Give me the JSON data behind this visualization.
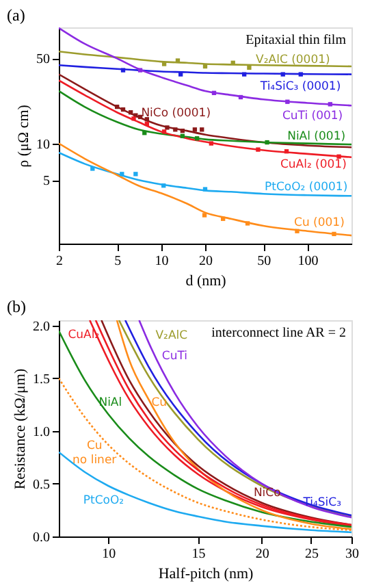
{
  "chart_data": [
    {
      "type": "line",
      "title": "(a)",
      "xlabel": "d (nm)",
      "ylabel": "ρ (μΩ cm)",
      "log": "xy",
      "xlim": [
        2,
        200
      ],
      "xticks": [
        2,
        5,
        10,
        20,
        50,
        100
      ],
      "ylim": [
        1.5,
        90
      ],
      "yticks": [
        5,
        10,
        50
      ],
      "grid": false,
      "annotations": [
        "Epitaxial thin film"
      ],
      "series": [
        {
          "name": "V₂AlC (0001)",
          "color": "#9c9c2c",
          "x": [
            2,
            3,
            5,
            7,
            10,
            15,
            20,
            30,
            50,
            100,
            200
          ],
          "values": [
            57,
            54,
            51,
            49,
            47,
            46,
            45,
            44.5,
            44,
            43.5,
            43
          ]
        },
        {
          "name": "Ti₄SiC₃ (0001)",
          "color": "#2020e0",
          "x": [
            2,
            3,
            5,
            7,
            10,
            15,
            20,
            30,
            50,
            100,
            200
          ],
          "values": [
            44,
            42.5,
            41,
            40,
            39,
            38.5,
            38,
            37.8,
            37.5,
            37.2,
            37
          ]
        },
        {
          "name": "CuTi (001)",
          "color": "#8b2be2",
          "x": [
            2,
            3,
            5,
            7,
            10,
            15,
            20,
            30,
            50,
            100,
            200
          ],
          "values": [
            89,
            66,
            50,
            41,
            35,
            30,
            27,
            25,
            23,
            21.5,
            20.5
          ]
        },
        {
          "name": "NiCo (0001)",
          "color": "#8b1a1a",
          "x": [
            2,
            3,
            5,
            7,
            10,
            15,
            20,
            30,
            50,
            100,
            200
          ],
          "values": [
            37,
            28,
            20,
            16.5,
            14,
            12.7,
            11.8,
            11,
            10.2,
            9.6,
            9.3
          ]
        },
        {
          "name": "NiAl (001)",
          "color": "#1a8c1a",
          "x": [
            2,
            3,
            5,
            7,
            10,
            15,
            20,
            30,
            50,
            100,
            200
          ],
          "values": [
            27,
            20,
            15,
            13,
            12,
            11.3,
            10.8,
            10.5,
            10.2,
            10,
            9.8
          ]
        },
        {
          "name": "CuAl₂ (001)",
          "color": "#ee1c25",
          "x": [
            2,
            3,
            5,
            7,
            10,
            15,
            20,
            30,
            50,
            100,
            200
          ],
          "values": [
            33,
            25,
            18,
            15,
            12.5,
            11,
            10.3,
            9.5,
            8.8,
            8.2,
            7.7
          ]
        },
        {
          "name": "PtCoO₂ (0001)",
          "color": "#1eaaf0",
          "x": [
            2,
            3,
            5,
            7,
            10,
            15,
            20,
            30,
            50,
            100,
            200
          ],
          "values": [
            8.4,
            6.8,
            5.6,
            5,
            4.6,
            4.3,
            4.1,
            4,
            3.85,
            3.75,
            3.7
          ]
        },
        {
          "name": "Cu (001)",
          "color": "#ff8c1a",
          "x": [
            2,
            3,
            5,
            7,
            10,
            15,
            20,
            30,
            50,
            100,
            200
          ],
          "values": [
            10,
            7.5,
            5.5,
            4.5,
            3.9,
            3.2,
            2.7,
            2.4,
            2.1,
            1.9,
            1.75
          ]
        },
        {
          "type": "scatter",
          "marker": "square",
          "color": "#9c9c2c",
          "x": [
            10.5,
            13,
            20,
            31,
            40
          ],
          "values": [
            45,
            48,
            43,
            46,
            42
          ]
        },
        {
          "type": "scatter",
          "marker": "square",
          "color": "#2020e0",
          "x": [
            5.5,
            7.2,
            13.6,
            37,
            68,
            90
          ],
          "values": [
            40,
            null,
            37,
            37,
            37,
            37
          ]
        },
        {
          "type": "scatter",
          "marker": "square",
          "color": "#8b2be2",
          "x": [
            7.2,
            23,
            35,
            73,
            143
          ],
          "values": [
            40,
            26,
            24,
            22,
            21
          ]
        },
        {
          "type": "scatter",
          "marker": "square",
          "color": "#8b1a1a",
          "x": [
            5,
            5.5,
            6.2,
            6.7,
            7.2,
            8,
            11,
            12.5,
            14,
            17,
            19
          ],
          "values": [
            20,
            19,
            18,
            17,
            16.5,
            15.8,
            13.5,
            13,
            12.7,
            13,
            13
          ]
        },
        {
          "type": "scatter",
          "marker": "square",
          "color": "#1a8c1a",
          "x": [
            7.7,
            14,
            17.6,
            53
          ],
          "values": [
            12.2,
            11.5,
            11,
            10.2
          ]
        },
        {
          "type": "scatter",
          "marker": "square",
          "color": "#ee1c25",
          "x": [
            6.5,
            8,
            10.5,
            22,
            46,
            72,
            164
          ],
          "values": [
            16,
            14.5,
            12.5,
            10,
            8.9,
            8.6,
            7.8
          ]
        },
        {
          "type": "scatter",
          "marker": "square",
          "color": "#1eaaf0",
          "x": [
            3.4,
            5.4,
            6.7,
            10.4,
            20
          ],
          "values": [
            6.2,
            5.6,
            5.6,
            4.5,
            4.2
          ]
        },
        {
          "type": "scatter",
          "marker": "square",
          "color": "#ff8c1a",
          "x": [
            19.8,
            26.5,
            39,
            85,
            152
          ],
          "values": [
            2.57,
            2.4,
            2.2,
            1.9,
            1.8
          ]
        }
      ]
    },
    {
      "type": "line",
      "title": "(b)",
      "xlabel": "Half-pitch (nm)",
      "ylabel": "Resistance (kΩ/μm)",
      "log": "x",
      "xlim": [
        8,
        30
      ],
      "xticks": [
        10,
        15,
        20,
        25,
        30
      ],
      "ylim": [
        0,
        2.05
      ],
      "yticks": [
        {
          "value": 0,
          "label": "0.0"
        },
        {
          "value": 0.5,
          "label": "0.5"
        },
        {
          "value": 1,
          "label": "1.0"
        },
        {
          "value": 1.5,
          "label": "1.5"
        },
        {
          "value": 2,
          "label": "2.0"
        }
      ],
      "grid": false,
      "annotations": [
        "interconnect line AR = 2"
      ],
      "series": [
        {
          "name": "V₂AlC",
          "color": "#9c9c2c",
          "x": [
            10.5,
            12,
            15,
            20,
            25,
            30
          ],
          "values": [
            2.05,
            1.52,
            0.92,
            0.48,
            0.29,
            0.19
          ]
        },
        {
          "name": "Ti₄SiC₃",
          "color": "#2020e0",
          "x": [
            10.8,
            12,
            15,
            20,
            25,
            30
          ],
          "values": [
            2.05,
            1.61,
            0.97,
            0.5,
            0.3,
            0.2
          ]
        },
        {
          "name": "CuTi",
          "color": "#8b2be2",
          "x": [
            11.5,
            12,
            13.5,
            15,
            17,
            20,
            25,
            30
          ],
          "values": [
            2.05,
            1.84,
            1.36,
            1.04,
            0.76,
            0.5,
            0.28,
            0.18
          ]
        },
        {
          "name": "NiCo",
          "color": "#8b1a1a",
          "x": [
            9.7,
            11,
            12,
            13.5,
            15,
            17,
            20,
            25,
            30
          ],
          "values": [
            2.05,
            1.48,
            1.19,
            0.88,
            0.67,
            0.49,
            0.32,
            0.18,
            0.11
          ]
        },
        {
          "name": "CuAl₂",
          "color": "#ee1c25",
          "x": [
            9.2,
            11,
            12,
            13.5,
            15,
            17,
            20,
            25,
            30
          ],
          "values": [
            2.05,
            1.3,
            1.04,
            0.77,
            0.59,
            0.43,
            0.28,
            0.16,
            0.1
          ]
        },
        {
          "name": "NiAl",
          "color": "#1a8c1a",
          "x": [
            8,
            9,
            10,
            11,
            12,
            13.5,
            15,
            17,
            20,
            25,
            30
          ],
          "values": [
            1.95,
            1.48,
            1.16,
            0.93,
            0.76,
            0.58,
            0.45,
            0.34,
            0.23,
            0.14,
            0.09
          ]
        },
        {
          "name": "Cu",
          "color": "#ff8c1a",
          "x": [
            10.4,
            11,
            12,
            13.5,
            15,
            17,
            20,
            25,
            30
          ],
          "values": [
            2.05,
            1.67,
            1.3,
            0.89,
            0.64,
            0.43,
            0.25,
            0.12,
            0.07
          ]
        },
        {
          "name": "Cu\nno liner",
          "color": "#ff8c1a",
          "line_style": "dotted",
          "x": [
            8,
            9,
            10,
            11,
            12,
            13.5,
            15,
            17,
            20,
            25,
            30
          ],
          "values": [
            1.5,
            1.13,
            0.87,
            0.69,
            0.56,
            0.42,
            0.32,
            0.24,
            0.16,
            0.09,
            0.06
          ]
        },
        {
          "name": "PtCoO₂",
          "color": "#1eaaf0",
          "x": [
            8,
            9,
            10,
            11,
            12,
            13.5,
            15,
            17,
            20,
            25,
            30
          ],
          "values": [
            0.8,
            0.61,
            0.48,
            0.39,
            0.32,
            0.24,
            0.19,
            0.14,
            0.1,
            0.06,
            0.04
          ]
        },
        {
          "color": "#ee1c25",
          "x": [
            9.45,
            11,
            12,
            13.5,
            15,
            17,
            20,
            25,
            30
          ],
          "values": [
            2.05,
            1.39,
            1.11,
            0.82,
            0.63,
            0.46,
            0.3,
            0.17,
            0.11
          ]
        }
      ]
    }
  ]
}
